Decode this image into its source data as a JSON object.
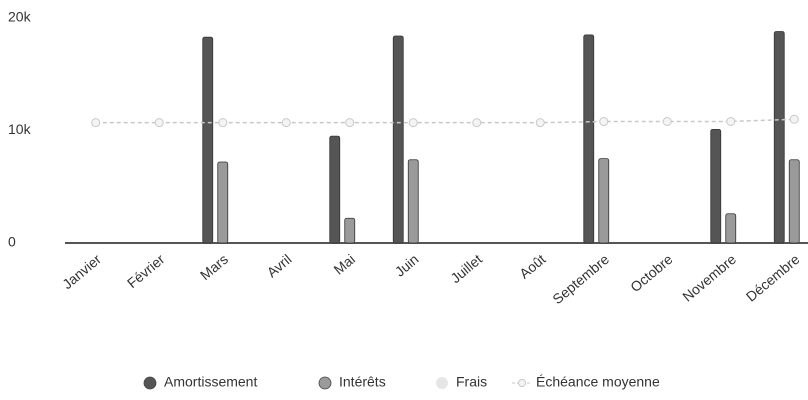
{
  "chart_data": {
    "type": "bar",
    "categories": [
      "Janvier",
      "Février",
      "Mars",
      "Avril",
      "Mai",
      "Juin",
      "Juillet",
      "Août",
      "Septembre",
      "Octobre",
      "Novembre",
      "Décembre"
    ],
    "series": [
      {
        "name": "Amortissement",
        "color": "#555555",
        "values": [
          0,
          0,
          18300,
          0,
          9500,
          18400,
          0,
          0,
          18500,
          0,
          10100,
          18800
        ]
      },
      {
        "name": "Intérêts",
        "color": "#9a9a9a",
        "values": [
          0,
          0,
          7200,
          0,
          2200,
          7400,
          0,
          0,
          7500,
          0,
          2600,
          7400
        ]
      },
      {
        "name": "Frais",
        "color": "#e6e6e6",
        "values": [
          0,
          0,
          0,
          0,
          0,
          0,
          0,
          0,
          0,
          0,
          0,
          0
        ]
      },
      {
        "name": "Échéance moyenne",
        "type": "line",
        "color": "#c8c8c8",
        "values": [
          10700,
          10700,
          10700,
          10700,
          10700,
          10700,
          10700,
          10700,
          10800,
          10800,
          10800,
          11000
        ]
      }
    ],
    "ylim": [
      0,
      20000
    ],
    "yticks": [
      0,
      {
        "value": 10000,
        "label": "10k"
      },
      {
        "value": 20000,
        "label": "20k"
      }
    ],
    "legend": "bottom"
  }
}
